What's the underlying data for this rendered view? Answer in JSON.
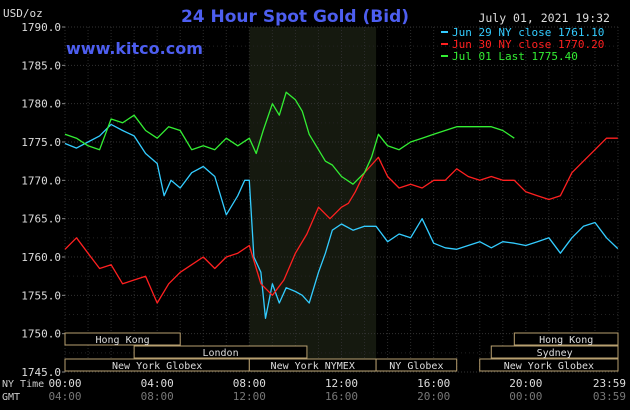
{
  "chart_data": {
    "type": "line",
    "title": "24 Hour Spot Gold (Bid)",
    "website": "www.kitco.com",
    "date_stamp": "July 01, 2021 19:32",
    "unit_label": "USD/oz",
    "ylim": [
      1745.0,
      1790.0
    ],
    "y_ticks": [
      "1745.0",
      "1750.0",
      "1755.0",
      "1760.0",
      "1765.0",
      "1770.0",
      "1775.0",
      "1780.0",
      "1785.0",
      "1790.0"
    ],
    "x_ticks_ny": [
      "00:00",
      "04:00",
      "08:00",
      "12:00",
      "16:00",
      "20:00",
      "23:59"
    ],
    "x_ticks_gmt": [
      "04:00",
      "08:00",
      "12:00",
      "16:00",
      "20:00",
      "00:00",
      "03:59"
    ],
    "axis_row_labels": {
      "ny": "NY Time",
      "gmt": "GMT"
    },
    "legend_position": "top-right",
    "nymex_window_hours": [
      8.0,
      13.5
    ],
    "series": [
      {
        "name": "Jun 29 NY close 1761.10",
        "color": "#33ccff",
        "x": [
          0,
          0.5,
          1.0,
          1.5,
          2.0,
          2.5,
          3.0,
          3.5,
          4.0,
          4.3,
          4.6,
          5.0,
          5.5,
          6.0,
          6.5,
          7.0,
          7.5,
          7.8,
          8.0,
          8.2,
          8.5,
          8.7,
          9.0,
          9.3,
          9.6,
          10.0,
          10.3,
          10.6,
          11.0,
          11.3,
          11.6,
          12.0,
          12.5,
          13.0,
          13.5,
          14.0,
          14.5,
          15.0,
          15.5,
          16.0,
          16.5,
          17.0,
          17.5,
          18.0,
          18.5,
          19.0,
          19.5,
          20.0,
          20.5,
          21.0,
          21.5,
          22.0,
          22.5,
          23.0,
          23.5,
          23.99
        ],
        "values": [
          1774.8,
          1774.2,
          1775.0,
          1775.8,
          1777.3,
          1776.5,
          1775.8,
          1773.5,
          1772.2,
          1768.0,
          1770.0,
          1769.0,
          1771.0,
          1771.8,
          1770.5,
          1765.5,
          1768.0,
          1770.0,
          1770.0,
          1760.0,
          1758.0,
          1752.0,
          1756.5,
          1754.0,
          1756.0,
          1755.5,
          1755.0,
          1754.0,
          1758.0,
          1760.5,
          1763.5,
          1764.3,
          1763.5,
          1764.0,
          1764.0,
          1762.0,
          1763.0,
          1762.5,
          1765.0,
          1761.8,
          1761.2,
          1761.0,
          1761.5,
          1762.0,
          1761.2,
          1762.0,
          1761.8,
          1761.5,
          1762.0,
          1762.5,
          1760.5,
          1762.5,
          1764.0,
          1764.5,
          1762.5,
          1761.1
        ]
      },
      {
        "name": "Jun 30 NY close 1770.20",
        "color": "#ff2020",
        "x": [
          0,
          0.5,
          1.0,
          1.5,
          2.0,
          2.5,
          3.0,
          3.5,
          4.0,
          4.5,
          5.0,
          5.5,
          6.0,
          6.5,
          7.0,
          7.5,
          8.0,
          8.5,
          9.0,
          9.5,
          10.0,
          10.5,
          11.0,
          11.5,
          12.0,
          12.3,
          12.6,
          13.0,
          13.3,
          13.6,
          14.0,
          14.5,
          15.0,
          15.5,
          16.0,
          16.5,
          17.0,
          17.5,
          18.0,
          18.5,
          19.0,
          19.5,
          20.0,
          20.5,
          21.0,
          21.5,
          22.0,
          22.5,
          23.0,
          23.5,
          23.99
        ],
        "values": [
          1761.0,
          1762.5,
          1760.5,
          1758.5,
          1759.0,
          1756.5,
          1757.0,
          1757.5,
          1754.0,
          1756.5,
          1758.0,
          1759.0,
          1760.0,
          1758.5,
          1760.0,
          1760.5,
          1761.5,
          1756.5,
          1755.0,
          1757.0,
          1760.5,
          1763.0,
          1766.5,
          1765.0,
          1766.5,
          1767.0,
          1768.5,
          1771.0,
          1772.0,
          1773.0,
          1770.5,
          1769.0,
          1769.5,
          1769.0,
          1770.0,
          1770.0,
          1771.5,
          1770.5,
          1770.0,
          1770.5,
          1770.0,
          1770.0,
          1768.5,
          1768.0,
          1767.5,
          1768.0,
          1771.0,
          1772.5,
          1774.0,
          1775.5,
          1775.5
        ]
      },
      {
        "name": "Jul 01 Last 1775.40",
        "color": "#33ee33",
        "x": [
          0,
          0.5,
          1.0,
          1.5,
          2.0,
          2.5,
          3.0,
          3.5,
          4.0,
          4.5,
          5.0,
          5.5,
          6.0,
          6.5,
          7.0,
          7.5,
          8.0,
          8.3,
          8.6,
          9.0,
          9.3,
          9.6,
          10.0,
          10.3,
          10.6,
          11.0,
          11.3,
          11.6,
          12.0,
          12.5,
          13.0,
          13.3,
          13.6,
          14.0,
          14.5,
          15.0,
          15.5,
          16.0,
          16.5,
          17.0,
          17.5,
          18.0,
          18.5,
          19.0,
          19.5
        ],
        "values": [
          1776.0,
          1775.5,
          1774.5,
          1774.0,
          1778.0,
          1777.5,
          1778.5,
          1776.5,
          1775.5,
          1777.0,
          1776.5,
          1774.0,
          1774.5,
          1774.0,
          1775.5,
          1774.5,
          1775.5,
          1773.5,
          1776.5,
          1780.0,
          1778.5,
          1781.5,
          1780.5,
          1779.0,
          1776.0,
          1774.0,
          1772.5,
          1772.0,
          1770.5,
          1769.5,
          1771.0,
          1773.0,
          1776.0,
          1774.5,
          1774.0,
          1775.0,
          1775.5,
          1776.0,
          1776.5,
          1777.0,
          1777.0,
          1777.0,
          1777.0,
          1776.5,
          1775.5
        ]
      }
    ]
  },
  "market_sessions": [
    {
      "label": "Hong Kong",
      "start": 0.0,
      "end": 5.0,
      "row": 0
    },
    {
      "label": "Hong Kong",
      "start": 19.5,
      "end": 24.0,
      "row": 0
    },
    {
      "label": "London",
      "start": 3.0,
      "end": 10.5,
      "row": 1
    },
    {
      "label": "Sydney",
      "start": 18.5,
      "end": 24.0,
      "row": 1
    },
    {
      "label": "New York Globex",
      "start": 0.0,
      "end": 8.0,
      "row": 2
    },
    {
      "label": "New York NYMEX",
      "start": 8.0,
      "end": 13.5,
      "row": 2
    },
    {
      "label": "NY Globex",
      "start": 13.5,
      "end": 17.0,
      "row": 2
    },
    {
      "label": "New York Globex",
      "start": 18.0,
      "end": 24.0,
      "row": 2
    }
  ]
}
